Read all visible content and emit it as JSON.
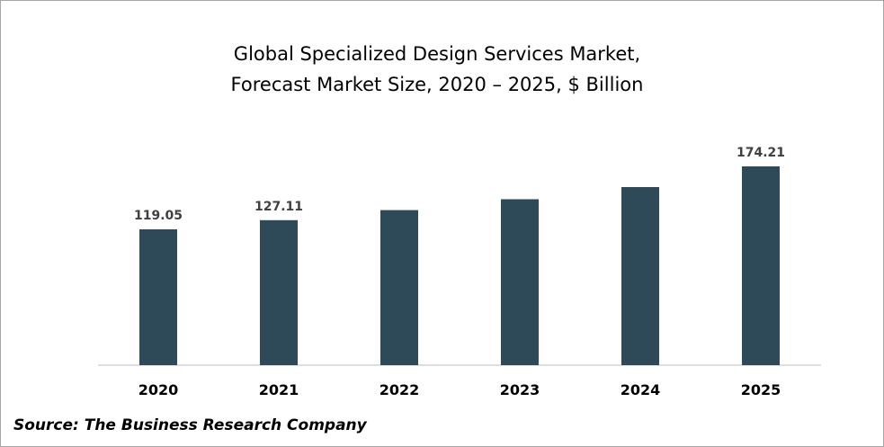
{
  "chart_data": {
    "type": "bar",
    "title": [
      "Global Specialized Design Services Market,",
      "Forecast Market Size, 2020 – 2025, $ Billion"
    ],
    "categories": [
      "2020",
      "2021",
      "2022",
      "2023",
      "2024",
      "2025"
    ],
    "values": [
      119.05,
      127.11,
      135.9,
      145.4,
      156.1,
      174.21
    ],
    "data_labels": [
      "119.05",
      "127.11",
      "",
      "",
      "",
      "174.21"
    ],
    "ylim": [
      0,
      180
    ],
    "xlabel": "",
    "ylabel": "",
    "grid": false,
    "legend": "none",
    "bar_color": "#2e4a59",
    "axis_color": "#bfbfbf"
  },
  "source": "Source: The Business Research Company"
}
